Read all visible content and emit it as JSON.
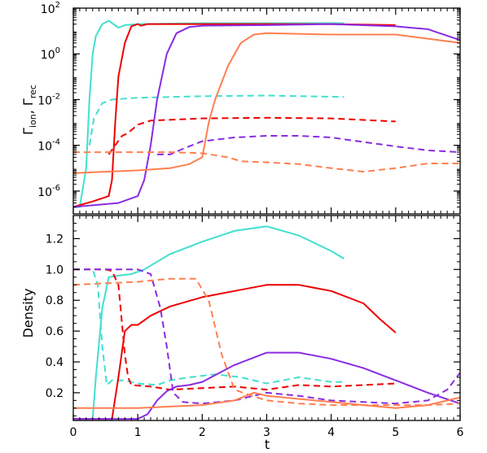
{
  "chart_data": [
    {
      "type": "line",
      "panel": "top",
      "ylabel": "Γion, Γrec",
      "ylabel_parts": {
        "g1": "Γ",
        "s1": "ion",
        "sep": ", ",
        "g2": "Γ",
        "s2": "rec"
      },
      "y_scale": "log",
      "xlim": [
        0,
        6
      ],
      "ylim": [
        1e-07,
        100
      ],
      "yticks": [
        {
          "value": 1e-06,
          "base": "10",
          "exp": "-6"
        },
        {
          "value": 0.0001,
          "base": "10",
          "exp": "-4"
        },
        {
          "value": 0.01,
          "base": "10",
          "exp": "-2"
        },
        {
          "value": 1,
          "base": "10",
          "exp": "0"
        },
        {
          "value": 100,
          "base": "10",
          "exp": "2"
        }
      ],
      "series": [
        {
          "color": "#40e0d0",
          "dash": false,
          "points": [
            [
              0,
              2e-07
            ],
            [
              0.1,
              2e-07
            ],
            [
              0.2,
              1e-05
            ],
            [
              0.25,
              0.01
            ],
            [
              0.3,
              1
            ],
            [
              0.35,
              6
            ],
            [
              0.45,
              20
            ],
            [
              0.55,
              28
            ],
            [
              0.7,
              14
            ],
            [
              0.8,
              18
            ],
            [
              1,
              20
            ],
            [
              2,
              22
            ],
            [
              3,
              22
            ],
            [
              4,
              22
            ],
            [
              4.2,
              22
            ]
          ]
        },
        {
          "color": "#40e0d0",
          "dash": true,
          "points": [
            [
              0.25,
              0.0001
            ],
            [
              0.32,
              0.0015
            ],
            [
              0.45,
              0.007
            ],
            [
              0.6,
              0.01
            ],
            [
              1,
              0.012
            ],
            [
              2,
              0.014
            ],
            [
              3,
              0.015
            ],
            [
              4.2,
              0.013
            ]
          ]
        },
        {
          "color": "#ee0000",
          "dash": false,
          "points": [
            [
              0,
              2e-07
            ],
            [
              0.3,
              3.5e-07
            ],
            [
              0.55,
              6e-07
            ],
            [
              0.6,
              3e-06
            ],
            [
              0.65,
              0.001
            ],
            [
              0.7,
              0.1
            ],
            [
              0.8,
              3
            ],
            [
              0.9,
              16
            ],
            [
              1.0,
              20
            ],
            [
              1.05,
              17
            ],
            [
              1.15,
              20
            ],
            [
              2,
              20
            ],
            [
              3,
              20
            ],
            [
              4,
              20
            ],
            [
              5,
              18
            ]
          ]
        },
        {
          "color": "#ee0000",
          "dash": true,
          "points": [
            [
              0.55,
              4e-05
            ],
            [
              0.65,
              0.0001
            ],
            [
              0.75,
              0.00025
            ],
            [
              0.85,
              0.00035
            ],
            [
              1.0,
              0.0008
            ],
            [
              1.2,
              0.0012
            ],
            [
              2,
              0.0015
            ],
            [
              3,
              0.0016
            ],
            [
              4,
              0.0015
            ],
            [
              5,
              0.0011
            ]
          ]
        },
        {
          "color": "#8a2be2",
          "dash": false,
          "points": [
            [
              0,
              2e-07
            ],
            [
              0.7,
              3e-07
            ],
            [
              1.0,
              6e-07
            ],
            [
              1.1,
              3e-06
            ],
            [
              1.2,
              0.0001
            ],
            [
              1.3,
              0.01
            ],
            [
              1.45,
              1
            ],
            [
              1.6,
              8
            ],
            [
              1.8,
              15
            ],
            [
              2,
              17
            ],
            [
              3,
              18
            ],
            [
              4,
              20
            ],
            [
              5,
              16
            ],
            [
              5.5,
              12
            ],
            [
              6,
              4
            ]
          ]
        },
        {
          "color": "#8a2be2",
          "dash": true,
          "points": [
            [
              1.3,
              4e-05
            ],
            [
              1.5,
              4e-05
            ],
            [
              1.7,
              7e-05
            ],
            [
              2,
              0.00015
            ],
            [
              2.5,
              0.00022
            ],
            [
              3,
              0.00026
            ],
            [
              3.5,
              0.00026
            ],
            [
              4,
              0.00022
            ],
            [
              4.5,
              0.00014
            ],
            [
              5,
              9e-05
            ],
            [
              5.5,
              6e-05
            ],
            [
              6,
              5e-05
            ]
          ]
        },
        {
          "color": "#ff7f50",
          "dash": false,
          "points": [
            [
              0,
              6e-06
            ],
            [
              0.5,
              7e-06
            ],
            [
              1,
              8e-06
            ],
            [
              1.5,
              1e-05
            ],
            [
              1.8,
              1.5e-05
            ],
            [
              2,
              3e-05
            ],
            [
              2.1,
              0.001
            ],
            [
              2.2,
              0.01
            ],
            [
              2.4,
              0.3
            ],
            [
              2.6,
              3
            ],
            [
              2.8,
              7
            ],
            [
              3,
              8
            ],
            [
              4,
              7
            ],
            [
              5,
              7
            ],
            [
              6,
              3
            ]
          ]
        },
        {
          "color": "#ff7f50",
          "dash": true,
          "points": [
            [
              0,
              5e-05
            ],
            [
              1,
              5e-05
            ],
            [
              1.5,
              5e-05
            ],
            [
              2,
              4.5e-05
            ],
            [
              2.4,
              3e-05
            ],
            [
              2.6,
              2e-05
            ],
            [
              3,
              1.8e-05
            ],
            [
              3.5,
              1.5e-05
            ],
            [
              4,
              1e-05
            ],
            [
              4.5,
              7e-06
            ],
            [
              5,
              1e-05
            ],
            [
              5.5,
              1.6e-05
            ],
            [
              6,
              1.6e-05
            ]
          ]
        }
      ]
    },
    {
      "type": "line",
      "panel": "bottom",
      "xlabel": "t",
      "ylabel": "Density",
      "xlim": [
        0,
        6
      ],
      "ylim": [
        0.02,
        1.35
      ],
      "xticks": [
        {
          "value": 0,
          "label": "0"
        },
        {
          "value": 1,
          "label": "1"
        },
        {
          "value": 2,
          "label": "2"
        },
        {
          "value": 3,
          "label": "3"
        },
        {
          "value": 4,
          "label": "4"
        },
        {
          "value": 5,
          "label": "5"
        },
        {
          "value": 6,
          "label": "6"
        }
      ],
      "yticks": [
        {
          "value": 0.2,
          "label": "0.2"
        },
        {
          "value": 0.4,
          "label": "0.4"
        },
        {
          "value": 0.6,
          "label": "0.6"
        },
        {
          "value": 0.8,
          "label": "0.8"
        },
        {
          "value": 1.0,
          "label": "1.0"
        },
        {
          "value": 1.2,
          "label": "1.2"
        }
      ],
      "series": [
        {
          "color": "#40e0d0",
          "dash": false,
          "points": [
            [
              0,
              0.03
            ],
            [
              0.3,
              0.03
            ],
            [
              0.35,
              0.3
            ],
            [
              0.45,
              0.75
            ],
            [
              0.55,
              0.95
            ],
            [
              0.7,
              0.96
            ],
            [
              0.9,
              0.97
            ],
            [
              1.1,
              1.0
            ],
            [
              1.5,
              1.1
            ],
            [
              2,
              1.18
            ],
            [
              2.5,
              1.25
            ],
            [
              3,
              1.28
            ],
            [
              3.5,
              1.22
            ],
            [
              4,
              1.12
            ],
            [
              4.2,
              1.07
            ]
          ]
        },
        {
          "color": "#40e0d0",
          "dash": true,
          "points": [
            [
              0,
              1.0
            ],
            [
              0.3,
              1.0
            ],
            [
              0.38,
              0.9
            ],
            [
              0.45,
              0.5
            ],
            [
              0.52,
              0.25
            ],
            [
              0.6,
              0.28
            ],
            [
              0.8,
              0.28
            ],
            [
              1,
              0.26
            ],
            [
              1.3,
              0.25
            ],
            [
              1.5,
              0.28
            ],
            [
              1.8,
              0.3
            ],
            [
              2.2,
              0.32
            ],
            [
              2.6,
              0.3
            ],
            [
              3,
              0.26
            ],
            [
              3.5,
              0.3
            ],
            [
              4,
              0.27
            ],
            [
              4.2,
              0.27
            ]
          ]
        },
        {
          "color": "#ee0000",
          "dash": false,
          "points": [
            [
              0,
              0.03
            ],
            [
              0.6,
              0.03
            ],
            [
              0.7,
              0.3
            ],
            [
              0.8,
              0.6
            ],
            [
              0.9,
              0.64
            ],
            [
              1,
              0.64
            ],
            [
              1.2,
              0.7
            ],
            [
              1.5,
              0.76
            ],
            [
              2,
              0.82
            ],
            [
              2.5,
              0.86
            ],
            [
              3,
              0.9
            ],
            [
              3.5,
              0.9
            ],
            [
              4,
              0.86
            ],
            [
              4.5,
              0.78
            ],
            [
              4.75,
              0.68
            ],
            [
              5,
              0.59
            ]
          ]
        },
        {
          "color": "#ee0000",
          "dash": true,
          "points": [
            [
              0,
              1.0
            ],
            [
              0.5,
              1.0
            ],
            [
              0.6,
              0.99
            ],
            [
              0.7,
              0.9
            ],
            [
              0.8,
              0.45
            ],
            [
              0.85,
              0.3
            ],
            [
              0.9,
              0.25
            ],
            [
              1.2,
              0.24
            ],
            [
              1.5,
              0.22
            ],
            [
              2,
              0.23
            ],
            [
              2.5,
              0.24
            ],
            [
              3,
              0.22
            ],
            [
              3.5,
              0.25
            ],
            [
              4,
              0.24
            ],
            [
              5,
              0.26
            ]
          ]
        },
        {
          "color": "#8a2be2",
          "dash": false,
          "points": [
            [
              0,
              0.03
            ],
            [
              1,
              0.03
            ],
            [
              1.15,
              0.06
            ],
            [
              1.3,
              0.15
            ],
            [
              1.45,
              0.21
            ],
            [
              1.6,
              0.24
            ],
            [
              1.8,
              0.25
            ],
            [
              2,
              0.27
            ],
            [
              2.5,
              0.38
            ],
            [
              3,
              0.46
            ],
            [
              3.5,
              0.46
            ],
            [
              4,
              0.42
            ],
            [
              4.5,
              0.36
            ],
            [
              5,
              0.28
            ],
            [
              5.5,
              0.2
            ],
            [
              6,
              0.13
            ]
          ]
        },
        {
          "color": "#8a2be2",
          "dash": true,
          "points": [
            [
              0,
              1.0
            ],
            [
              1,
              1.0
            ],
            [
              1.2,
              0.97
            ],
            [
              1.35,
              0.75
            ],
            [
              1.45,
              0.5
            ],
            [
              1.55,
              0.2
            ],
            [
              1.7,
              0.14
            ],
            [
              2,
              0.13
            ],
            [
              2.5,
              0.15
            ],
            [
              3,
              0.2
            ],
            [
              3.5,
              0.18
            ],
            [
              4,
              0.15
            ],
            [
              4.5,
              0.14
            ],
            [
              5,
              0.13
            ],
            [
              5.5,
              0.15
            ],
            [
              5.8,
              0.22
            ],
            [
              6,
              0.33
            ]
          ]
        },
        {
          "color": "#ff7f50",
          "dash": false,
          "points": [
            [
              0,
              0.1
            ],
            [
              0.5,
              0.1
            ],
            [
              1,
              0.1
            ],
            [
              1.5,
              0.11
            ],
            [
              2,
              0.12
            ],
            [
              2.5,
              0.15
            ],
            [
              2.8,
              0.2
            ],
            [
              3,
              0.18
            ],
            [
              3.5,
              0.16
            ],
            [
              4,
              0.14
            ],
            [
              4.5,
              0.12
            ],
            [
              5,
              0.1
            ],
            [
              5.5,
              0.12
            ],
            [
              6,
              0.17
            ]
          ]
        },
        {
          "color": "#ff7f50",
          "dash": true,
          "points": [
            [
              0,
              0.9
            ],
            [
              0.5,
              0.91
            ],
            [
              1,
              0.92
            ],
            [
              1.5,
              0.94
            ],
            [
              1.9,
              0.94
            ],
            [
              2.1,
              0.8
            ],
            [
              2.3,
              0.45
            ],
            [
              2.5,
              0.22
            ],
            [
              2.7,
              0.19
            ],
            [
              3,
              0.15
            ],
            [
              3.5,
              0.13
            ],
            [
              4,
              0.12
            ],
            [
              4.5,
              0.12
            ],
            [
              5,
              0.12
            ],
            [
              5.5,
              0.12
            ],
            [
              6,
              0.13
            ]
          ]
        }
      ]
    }
  ]
}
